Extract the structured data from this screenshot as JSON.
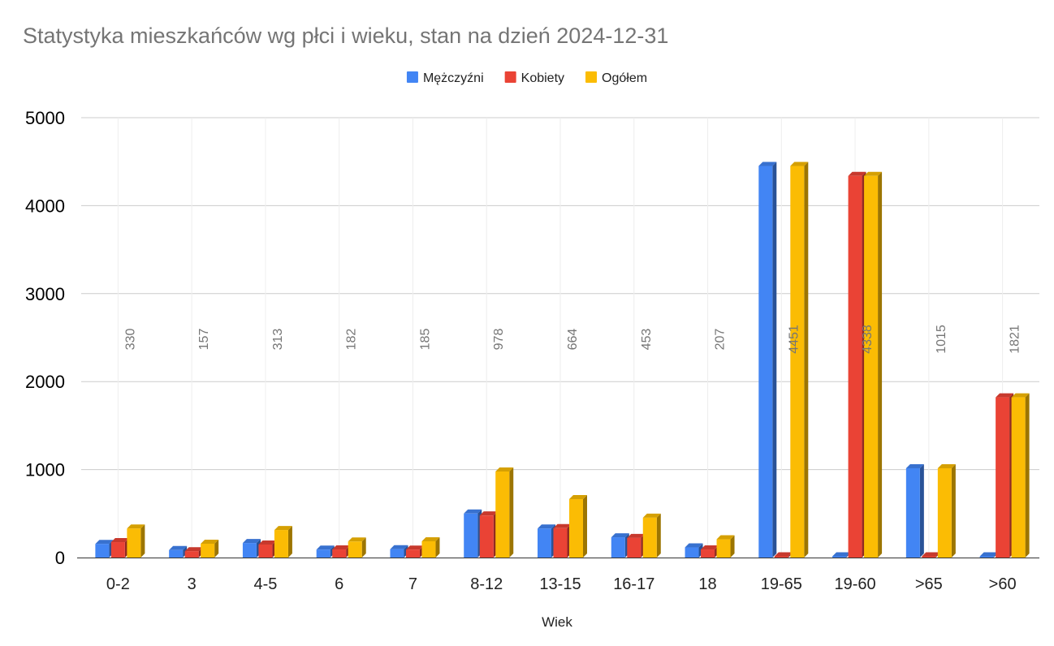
{
  "chart_data": {
    "type": "bar",
    "title": "Statystyka mieszkańców wg płci i wieku, stan na dzień 2024-12-31",
    "xlabel": "Wiek",
    "ylabel": "",
    "ylim": [
      0,
      5000
    ],
    "yticks": [
      "0",
      "1000",
      "2000",
      "3000",
      "4000",
      "5000"
    ],
    "grid": true,
    "legend_position": "top",
    "categories": [
      "0-2",
      "3",
      "4-5",
      "6",
      "7",
      "8-12",
      "13-15",
      "16-17",
      "18",
      "19-65",
      "19-60",
      ">65",
      ">60"
    ],
    "series": [
      {
        "name": "Mężczyźni",
        "color": "#4285f4",
        "values": [
          155,
          85,
          165,
          90,
          95,
          500,
          330,
          230,
          115,
          4451,
          0,
          1015,
          0
        ]
      },
      {
        "name": "Kobiety",
        "color": "#ea4335",
        "values": [
          175,
          72,
          148,
          92,
          90,
          478,
          334,
          223,
          92,
          0,
          4338,
          0,
          1821
        ]
      },
      {
        "name": "Ogółem",
        "color": "#fbbc04",
        "values": [
          330,
          157,
          313,
          182,
          185,
          978,
          664,
          453,
          207,
          4451,
          4338,
          1015,
          1821
        ]
      }
    ],
    "data_labels": [
      "330",
      "157",
      "313",
      "182",
      "185",
      "978",
      "664",
      "453",
      "207",
      "4451",
      "4338",
      "1015",
      "1821"
    ]
  }
}
